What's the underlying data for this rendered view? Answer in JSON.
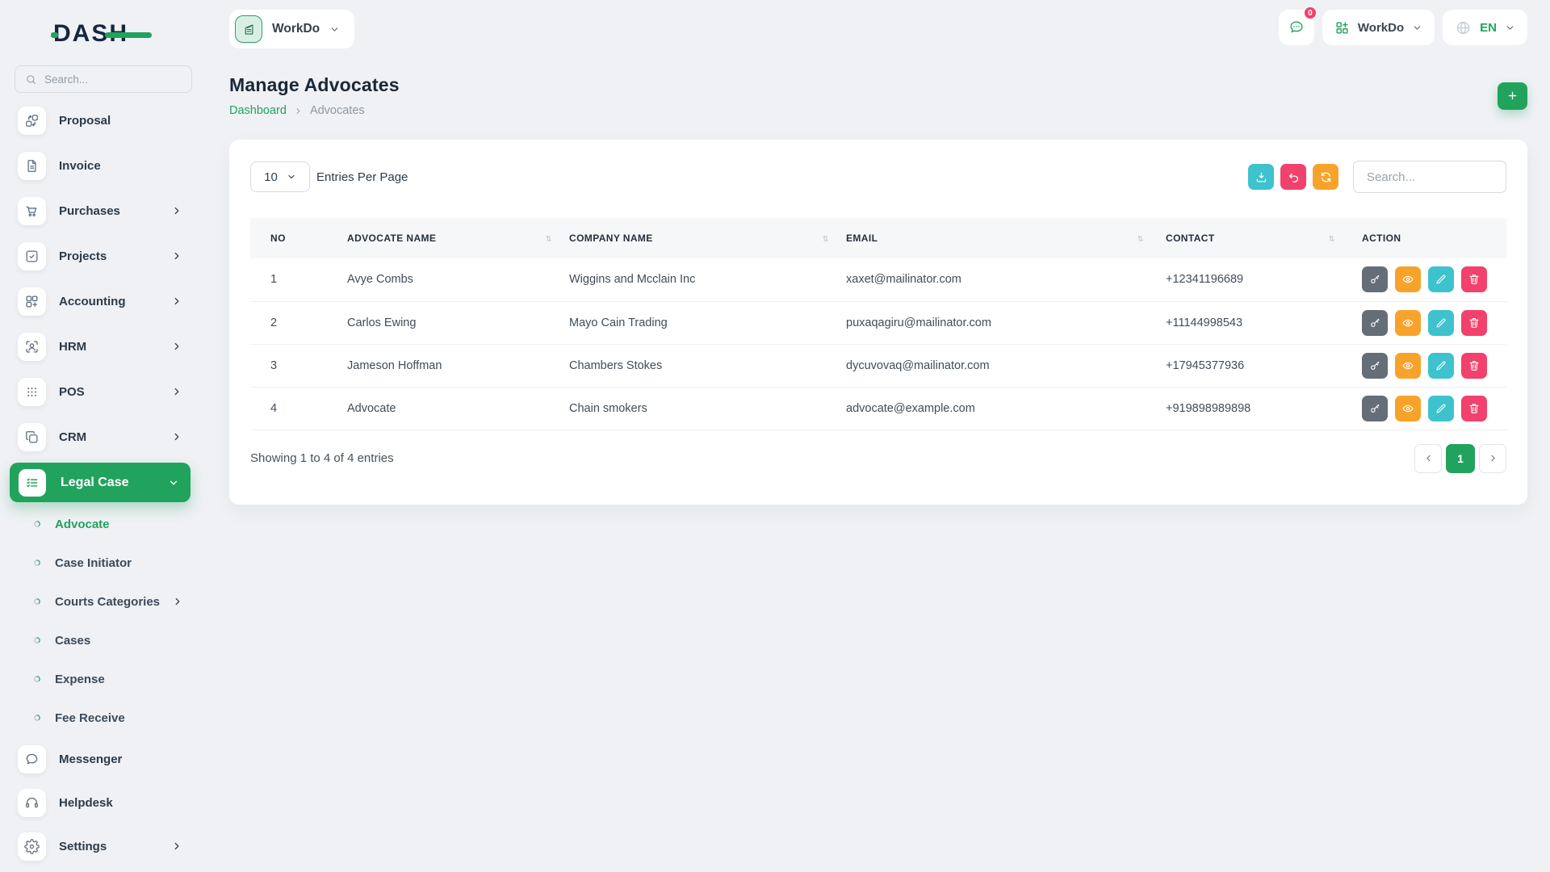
{
  "logo": {
    "text": "DASH"
  },
  "sidebar": {
    "search": {
      "placeholder": "Search...",
      "icon": "search-icon"
    },
    "menu": [
      {
        "label": "Proposal",
        "icon": "proposal-icon",
        "chevron": false
      },
      {
        "label": "Invoice",
        "icon": "invoice-icon",
        "chevron": false
      },
      {
        "label": "Purchases",
        "icon": "purchases-icon",
        "chevron": true
      },
      {
        "label": "Projects",
        "icon": "projects-icon",
        "chevron": true
      },
      {
        "label": "Accounting",
        "icon": "accounting-icon",
        "chevron": true
      },
      {
        "label": "HRM",
        "icon": "hrm-icon",
        "chevron": true
      },
      {
        "label": "POS",
        "icon": "pos-icon",
        "chevron": true
      },
      {
        "label": "CRM",
        "icon": "crm-icon",
        "chevron": true
      }
    ],
    "active_group": {
      "label": "Legal Case",
      "icon": "legal-case-icon",
      "chevron": "down"
    },
    "submenu": [
      {
        "label": "Advocate",
        "active": true,
        "chevron": false
      },
      {
        "label": "Case Initiator",
        "active": false,
        "chevron": false
      },
      {
        "label": "Courts Categories",
        "active": false,
        "chevron": true
      },
      {
        "label": "Cases",
        "active": false,
        "chevron": false
      },
      {
        "label": "Expense",
        "active": false,
        "chevron": false
      },
      {
        "label": "Fee Receive",
        "active": false,
        "chevron": false
      }
    ],
    "bottom_menu": [
      {
        "label": "Messenger",
        "icon": "messenger-icon",
        "chevron": false
      },
      {
        "label": "Helpdesk",
        "icon": "helpdesk-icon",
        "chevron": false
      },
      {
        "label": "Settings",
        "icon": "settings-icon",
        "chevron": true
      }
    ]
  },
  "topbar": {
    "workspace": {
      "label": "WorkDo",
      "icon": "company-icon"
    },
    "messages": {
      "badge": "0",
      "icon": "chat-icon"
    },
    "apps": {
      "label": "WorkDo",
      "icon": "apps-grid-icon"
    },
    "language": {
      "label": "EN",
      "icon": "globe-icon"
    }
  },
  "page": {
    "title": "Manage Advocates",
    "breadcrumb": {
      "home": "Dashboard",
      "current": "Advocates"
    }
  },
  "toolbar": {
    "entries_value": "10",
    "entries_label": "Entries Per Page",
    "search_placeholder": "Search...",
    "buttons": [
      {
        "name": "export",
        "icon": "export-icon",
        "color": "teal"
      },
      {
        "name": "undo",
        "icon": "undo-icon",
        "color": "pink"
      },
      {
        "name": "refresh",
        "icon": "refresh-icon",
        "color": "orange"
      }
    ]
  },
  "table": {
    "headers": [
      {
        "label": "NO",
        "sortable": false
      },
      {
        "label": "ADVOCATE NAME",
        "sortable": true
      },
      {
        "label": "COMPANY NAME",
        "sortable": true
      },
      {
        "label": "EMAIL",
        "sortable": true
      },
      {
        "label": "CONTACT",
        "sortable": true
      },
      {
        "label": "ACTION",
        "sortable": false
      }
    ],
    "rows": [
      {
        "no": "1",
        "advocate_name": "Avye Combs",
        "company_name": "Wiggins and Mcclain Inc",
        "email": "xaxet@mailinator.com",
        "contact": "+12341196689"
      },
      {
        "no": "2",
        "advocate_name": "Carlos Ewing",
        "company_name": "Mayo Cain Trading",
        "email": "puxaqagiru@mailinator.com",
        "contact": "+11144998543"
      },
      {
        "no": "3",
        "advocate_name": "Jameson Hoffman",
        "company_name": "Chambers Stokes",
        "email": "dycuvovaq@mailinator.com",
        "contact": "+17945377936"
      },
      {
        "no": "4",
        "advocate_name": "Advocate",
        "company_name": "Chain smokers",
        "email": "advocate@example.com",
        "contact": "+919898989898"
      }
    ],
    "row_actions": [
      "login-as",
      "view",
      "edit",
      "delete"
    ]
  },
  "footer": {
    "showing_text": "Showing 1 to 4 of 4 entries",
    "pagination": {
      "current": "1",
      "prev_icon": "chevron-left-icon",
      "next_icon": "chevron-right-icon"
    }
  },
  "colors": {
    "primary_green": "#21A35E",
    "teal": "#3DC2CE",
    "pink": "#F1416C",
    "orange": "#F7A32B",
    "gray_action": "#656D76"
  }
}
